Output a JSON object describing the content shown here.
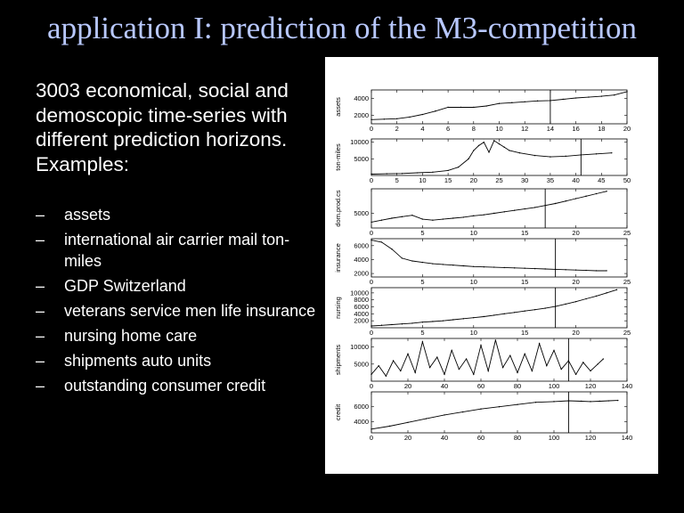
{
  "title": "application I: prediction of the M3-competition",
  "intro": "3003 economical, social and demoscopic time-series with different prediction horizons. Examples:",
  "bullet_marker": "–",
  "bullets": [
    "assets",
    "international air carrier mail ton-miles",
    "GDP Switzerland",
    "veterans service men life insurance",
    "nursing home care",
    "shipments auto units",
    "outstanding consumer credit"
  ],
  "colors": {
    "background": "#000000",
    "title": "#b8c8ff",
    "text": "#ffffff",
    "panel": "#ffffff"
  },
  "chart_data": [
    {
      "type": "line",
      "ylabel": "assets",
      "xlim": [
        0,
        20
      ],
      "xticks": [
        0,
        2,
        4,
        6,
        8,
        10,
        12,
        14,
        16,
        18,
        20
      ],
      "yticks": [
        2000,
        4000
      ],
      "ylim": [
        1000,
        5000
      ],
      "forecast_origin": 14,
      "x": [
        0,
        1,
        2,
        3,
        4,
        5,
        6,
        7,
        8,
        9,
        10,
        11,
        12,
        13,
        14,
        15,
        16,
        17,
        18,
        19,
        20
      ],
      "y": [
        1500,
        1550,
        1600,
        1800,
        2100,
        2500,
        2950,
        2950,
        2950,
        3100,
        3400,
        3500,
        3600,
        3700,
        3750,
        3900,
        4050,
        4150,
        4250,
        4400,
        4800
      ]
    },
    {
      "type": "line",
      "ylabel": "ton-miles",
      "xlim": [
        0,
        50
      ],
      "xticks": [
        0,
        5,
        10,
        15,
        20,
        25,
        30,
        35,
        40,
        45,
        50
      ],
      "yticks": [
        5000,
        10000
      ],
      "ylim": [
        0,
        11000
      ],
      "forecast_origin": 41,
      "x": [
        0,
        3,
        6,
        9,
        12,
        15,
        17,
        19,
        20,
        21,
        22,
        23,
        24,
        25,
        26,
        27,
        29,
        32,
        35,
        38,
        41,
        44,
        47
      ],
      "y": [
        400,
        500,
        600,
        800,
        1000,
        1500,
        2500,
        5000,
        7500,
        9000,
        10000,
        7000,
        10500,
        9500,
        8500,
        7500,
        6800,
        6000,
        5600,
        5800,
        6200,
        6500,
        6800
      ]
    },
    {
      "type": "line",
      "ylabel": "dom.prod.cs",
      "xlim": [
        0,
        25
      ],
      "xticks": [
        0,
        5,
        10,
        15,
        20,
        25
      ],
      "yticks": [
        5000
      ],
      "ylim": [
        2000,
        10000
      ],
      "forecast_origin": 17,
      "x": [
        0,
        1,
        2,
        3,
        4,
        5,
        6,
        7,
        8,
        9,
        10,
        11,
        12,
        13,
        14,
        15,
        16,
        17,
        18,
        19,
        20,
        21,
        22,
        23
      ],
      "y": [
        3200,
        3600,
        4000,
        4300,
        4600,
        3800,
        3600,
        3800,
        4000,
        4200,
        4500,
        4700,
        5000,
        5300,
        5600,
        5900,
        6200,
        6600,
        7000,
        7500,
        8000,
        8500,
        9000,
        9500
      ]
    },
    {
      "type": "line",
      "ylabel": "insurance",
      "xlim": [
        0,
        25
      ],
      "xticks": [
        0,
        5,
        10,
        15,
        20,
        25
      ],
      "yticks": [
        2000,
        4000,
        6000
      ],
      "ylim": [
        1500,
        7000
      ],
      "forecast_origin": 18,
      "x": [
        0,
        1,
        2,
        3,
        4,
        5,
        6,
        7,
        8,
        9,
        10,
        11,
        12,
        13,
        14,
        15,
        16,
        17,
        18,
        19,
        20,
        21,
        22,
        23
      ],
      "y": [
        6800,
        6500,
        5500,
        4200,
        3800,
        3600,
        3400,
        3300,
        3200,
        3100,
        3000,
        2950,
        2900,
        2850,
        2800,
        2750,
        2700,
        2650,
        2600,
        2550,
        2500,
        2450,
        2400,
        2400
      ]
    },
    {
      "type": "line",
      "ylabel": "nursing",
      "xlim": [
        0,
        25
      ],
      "xticks": [
        0,
        5,
        10,
        15,
        20,
        25
      ],
      "yticks": [
        2000,
        4000,
        6000,
        8000,
        10000
      ],
      "ylim": [
        0,
        11500
      ],
      "forecast_origin": 18,
      "x": [
        0,
        1,
        2,
        3,
        4,
        5,
        6,
        7,
        8,
        9,
        10,
        11,
        12,
        13,
        14,
        15,
        16,
        17,
        18,
        19,
        20,
        21,
        22,
        23,
        24
      ],
      "y": [
        500,
        700,
        900,
        1100,
        1300,
        1600,
        1800,
        2000,
        2300,
        2600,
        2900,
        3200,
        3600,
        4000,
        4400,
        4800,
        5200,
        5600,
        6100,
        6800,
        7500,
        8300,
        9100,
        10000,
        10900
      ]
    },
    {
      "type": "line",
      "ylabel": "shipments",
      "xlim": [
        0,
        140
      ],
      "xticks": [
        0,
        20,
        40,
        60,
        80,
        100,
        120,
        140
      ],
      "yticks": [
        5000,
        10000
      ],
      "ylim": [
        0,
        12500
      ],
      "forecast_origin": 108,
      "x": [
        0,
        4,
        8,
        12,
        16,
        20,
        24,
        28,
        32,
        36,
        40,
        44,
        48,
        52,
        56,
        60,
        64,
        68,
        72,
        76,
        80,
        84,
        88,
        92,
        96,
        100,
        104,
        108,
        112,
        116,
        120,
        124,
        127
      ],
      "y": [
        2000,
        4500,
        1500,
        6000,
        3000,
        8000,
        2500,
        11500,
        4000,
        7000,
        2000,
        9000,
        3500,
        6500,
        2000,
        10500,
        3000,
        12000,
        4000,
        7500,
        2500,
        8000,
        3000,
        11000,
        4500,
        9000,
        3500,
        6000,
        2000,
        5500,
        3000,
        5000,
        6500
      ]
    },
    {
      "type": "line",
      "ylabel": "credit",
      "xlim": [
        0,
        140
      ],
      "xticks": [
        0,
        20,
        40,
        60,
        80,
        100,
        120,
        140
      ],
      "yticks": [
        4000,
        6000
      ],
      "ylim": [
        2500,
        8000
      ],
      "forecast_origin": 108,
      "x": [
        0,
        10,
        20,
        30,
        40,
        50,
        60,
        70,
        80,
        90,
        100,
        108,
        115,
        120,
        125,
        130,
        135
      ],
      "y": [
        3000,
        3400,
        3900,
        4400,
        4900,
        5300,
        5700,
        6000,
        6300,
        6600,
        6700,
        6800,
        6750,
        6700,
        6750,
        6800,
        6850
      ]
    }
  ]
}
